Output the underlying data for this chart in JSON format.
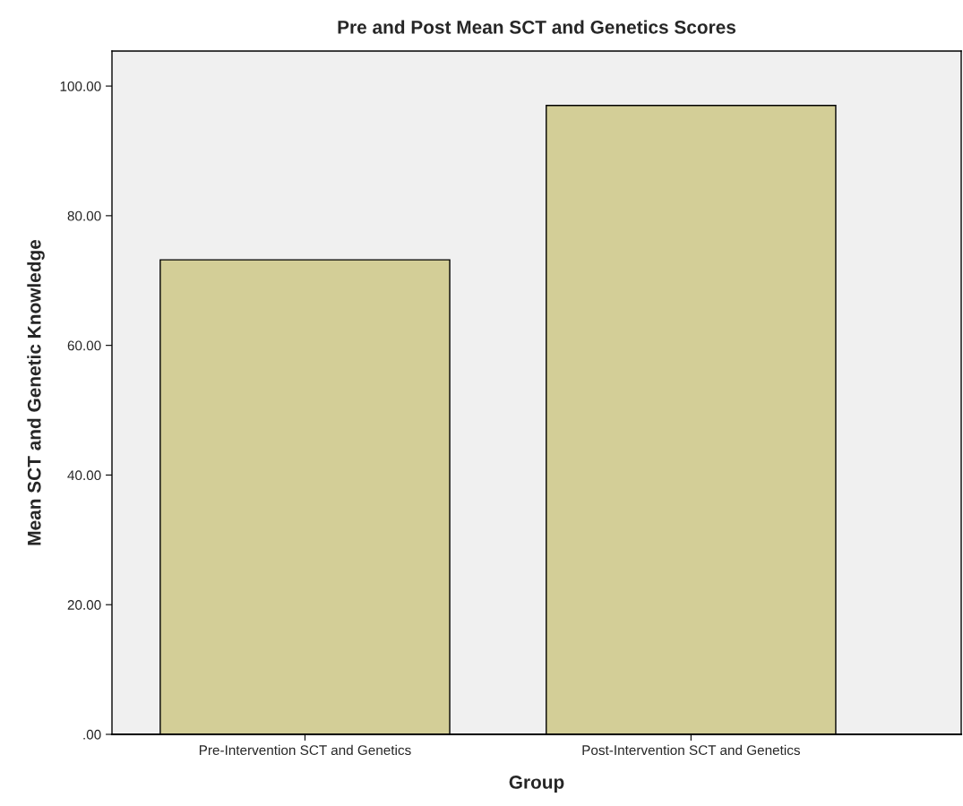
{
  "chart_data": {
    "type": "bar",
    "title": "Pre and Post Mean SCT and Genetics Scores",
    "xlabel": "Group",
    "ylabel": "Mean SCT and Genetic Knowledge",
    "categories": [
      "Pre-Intervention SCT and Genetics",
      "Post-Intervention SCT and Genetics"
    ],
    "values": [
      73.2,
      97.0
    ],
    "color": "#d3ce97",
    "ylim": [
      0,
      105.4
    ],
    "yticks": [
      {
        "value": 0,
        "label": ".00"
      },
      {
        "value": 20,
        "label": "20.00"
      },
      {
        "value": 40,
        "label": "40.00"
      },
      {
        "value": 60,
        "label": "60.00"
      },
      {
        "value": 80,
        "label": "80.00"
      },
      {
        "value": 100,
        "label": "100.00"
      }
    ],
    "grid": false,
    "legend": false
  }
}
